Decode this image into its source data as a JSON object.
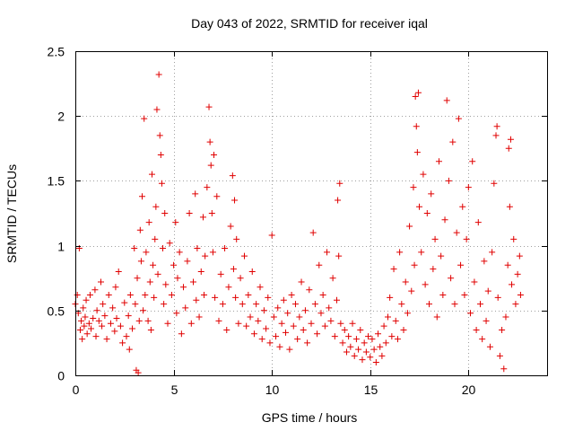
{
  "chart_data": {
    "type": "scatter",
    "title": "Day 043 of 2022, SRMTID for receiver iqal",
    "xlabel": "GPS time / hours",
    "ylabel": "SRMTID / TECUs",
    "xlim": [
      0,
      24
    ],
    "ylim": [
      0,
      2.5
    ],
    "xticks": [
      0,
      5,
      10,
      15,
      20
    ],
    "xtick_labels": [
      "0",
      "5",
      "10",
      "15",
      "20"
    ],
    "yticks": [
      0,
      0.5,
      1,
      1.5,
      2,
      2.5
    ],
    "ytick_labels": [
      "0",
      "0.5",
      "1",
      "1.5",
      "2",
      "2.5"
    ],
    "grid": true,
    "marker": "+",
    "color": "#e00000",
    "series": [
      {
        "name": "SRMTID",
        "points": [
          [
            0.0,
            0.55
          ],
          [
            0.1,
            0.62
          ],
          [
            0.15,
            0.48
          ],
          [
            0.2,
            0.98
          ],
          [
            0.25,
            0.35
          ],
          [
            0.3,
            0.42
          ],
          [
            0.35,
            0.28
          ],
          [
            0.4,
            0.52
          ],
          [
            0.45,
            0.38
          ],
          [
            0.5,
            0.45
          ],
          [
            0.55,
            0.58
          ],
          [
            0.6,
            0.32
          ],
          [
            0.7,
            0.4
          ],
          [
            0.75,
            0.62
          ],
          [
            0.8,
            0.36
          ],
          [
            0.9,
            0.44
          ],
          [
            1.0,
            0.66
          ],
          [
            1.05,
            0.3
          ],
          [
            1.1,
            0.5
          ],
          [
            1.2,
            0.42
          ],
          [
            1.3,
            0.72
          ],
          [
            1.35,
            0.38
          ],
          [
            1.4,
            0.55
          ],
          [
            1.5,
            0.46
          ],
          [
            1.6,
            0.28
          ],
          [
            1.7,
            0.62
          ],
          [
            1.8,
            0.4
          ],
          [
            1.9,
            0.52
          ],
          [
            2.0,
            0.34
          ],
          [
            2.05,
            0.68
          ],
          [
            2.1,
            0.44
          ],
          [
            2.2,
            0.8
          ],
          [
            2.3,
            0.38
          ],
          [
            2.4,
            0.25
          ],
          [
            2.5,
            0.56
          ],
          [
            2.6,
            0.3
          ],
          [
            2.7,
            0.46
          ],
          [
            2.75,
            0.2
          ],
          [
            2.8,
            0.62
          ],
          [
            2.9,
            0.36
          ],
          [
            3.0,
            0.98
          ],
          [
            3.05,
            0.55
          ],
          [
            3.1,
            0.04
          ],
          [
            3.15,
            0.75
          ],
          [
            3.2,
            0.02
          ],
          [
            3.25,
            0.42
          ],
          [
            3.3,
            1.12
          ],
          [
            3.35,
            0.88
          ],
          [
            3.4,
            1.38
          ],
          [
            3.45,
            0.5
          ],
          [
            3.5,
            1.98
          ],
          [
            3.55,
            0.62
          ],
          [
            3.6,
            0.95
          ],
          [
            3.7,
            0.42
          ],
          [
            3.75,
            1.18
          ],
          [
            3.8,
            0.72
          ],
          [
            3.85,
            0.35
          ],
          [
            3.9,
            1.55
          ],
          [
            3.95,
            0.85
          ],
          [
            4.0,
            0.6
          ],
          [
            4.05,
            1.05
          ],
          [
            4.1,
            1.3
          ],
          [
            4.15,
            2.05
          ],
          [
            4.2,
            0.78
          ],
          [
            4.25,
            2.32
          ],
          [
            4.3,
            1.85
          ],
          [
            4.35,
            1.7
          ],
          [
            4.4,
            1.48
          ],
          [
            4.45,
            0.98
          ],
          [
            4.5,
            0.55
          ],
          [
            4.55,
            1.25
          ],
          [
            4.6,
            0.7
          ],
          [
            4.7,
            0.4
          ],
          [
            4.8,
            1.02
          ],
          [
            4.9,
            0.62
          ],
          [
            5.0,
            0.85
          ],
          [
            5.1,
            1.18
          ],
          [
            5.15,
            0.48
          ],
          [
            5.2,
            0.75
          ],
          [
            5.3,
            0.95
          ],
          [
            5.4,
            0.32
          ],
          [
            5.5,
            0.68
          ],
          [
            5.6,
            0.52
          ],
          [
            5.7,
            0.88
          ],
          [
            5.8,
            1.25
          ],
          [
            5.9,
            0.4
          ],
          [
            6.0,
            0.72
          ],
          [
            6.1,
            1.4
          ],
          [
            6.15,
            0.58
          ],
          [
            6.2,
            0.98
          ],
          [
            6.3,
            0.45
          ],
          [
            6.4,
            0.8
          ],
          [
            6.5,
            1.22
          ],
          [
            6.55,
            0.62
          ],
          [
            6.6,
            0.92
          ],
          [
            6.7,
            1.45
          ],
          [
            6.8,
            2.07
          ],
          [
            6.85,
            1.8
          ],
          [
            6.9,
            1.62
          ],
          [
            6.95,
            1.25
          ],
          [
            7.0,
            0.95
          ],
          [
            7.05,
            1.7
          ],
          [
            7.1,
            0.6
          ],
          [
            7.2,
            1.38
          ],
          [
            7.3,
            0.42
          ],
          [
            7.4,
            0.78
          ],
          [
            7.5,
            0.55
          ],
          [
            7.6,
            0.98
          ],
          [
            7.7,
            0.35
          ],
          [
            7.8,
            0.68
          ],
          [
            7.9,
            1.15
          ],
          [
            8.0,
            1.54
          ],
          [
            8.05,
            0.82
          ],
          [
            8.1,
            1.35
          ],
          [
            8.15,
            0.6
          ],
          [
            8.2,
            1.05
          ],
          [
            8.3,
            0.4
          ],
          [
            8.4,
            0.75
          ],
          [
            8.5,
            0.55
          ],
          [
            8.6,
            0.92
          ],
          [
            8.7,
            0.38
          ],
          [
            8.8,
            0.62
          ],
          [
            8.9,
            0.45
          ],
          [
            9.0,
            0.8
          ],
          [
            9.1,
            0.32
          ],
          [
            9.2,
            0.55
          ],
          [
            9.3,
            0.42
          ],
          [
            9.4,
            0.68
          ],
          [
            9.5,
            0.28
          ],
          [
            9.6,
            0.5
          ],
          [
            9.7,
            0.36
          ],
          [
            9.8,
            0.6
          ],
          [
            9.9,
            0.25
          ],
          [
            10.0,
            1.08
          ],
          [
            10.1,
            0.45
          ],
          [
            10.2,
            0.3
          ],
          [
            10.3,
            0.52
          ],
          [
            10.4,
            0.22
          ],
          [
            10.5,
            0.4
          ],
          [
            10.6,
            0.58
          ],
          [
            10.7,
            0.33
          ],
          [
            10.8,
            0.48
          ],
          [
            10.9,
            0.2
          ],
          [
            11.0,
            0.62
          ],
          [
            11.1,
            0.38
          ],
          [
            11.2,
            0.55
          ],
          [
            11.3,
            0.28
          ],
          [
            11.4,
            0.45
          ],
          [
            11.5,
            0.72
          ],
          [
            11.6,
            0.35
          ],
          [
            11.7,
            0.5
          ],
          [
            11.8,
            0.25
          ],
          [
            11.9,
            0.66
          ],
          [
            12.0,
            0.4
          ],
          [
            12.1,
            1.1
          ],
          [
            12.2,
            0.55
          ],
          [
            12.3,
            0.32
          ],
          [
            12.4,
            0.85
          ],
          [
            12.5,
            0.48
          ],
          [
            12.6,
            0.62
          ],
          [
            12.7,
            0.38
          ],
          [
            12.8,
            0.95
          ],
          [
            12.9,
            0.52
          ],
          [
            13.0,
            0.42
          ],
          [
            13.1,
            0.75
          ],
          [
            13.2,
            0.3
          ],
          [
            13.3,
            0.58
          ],
          [
            13.35,
            1.35
          ],
          [
            13.4,
            0.92
          ],
          [
            13.45,
            1.48
          ],
          [
            13.5,
            0.4
          ],
          [
            13.6,
            0.25
          ],
          [
            13.7,
            0.35
          ],
          [
            13.8,
            0.18
          ],
          [
            13.9,
            0.3
          ],
          [
            14.0,
            0.22
          ],
          [
            14.1,
            0.4
          ],
          [
            14.2,
            0.15
          ],
          [
            14.3,
            0.28
          ],
          [
            14.4,
            0.2
          ],
          [
            14.5,
            0.35
          ],
          [
            14.6,
            0.12
          ],
          [
            14.7,
            0.25
          ],
          [
            14.8,
            0.18
          ],
          [
            14.9,
            0.3
          ],
          [
            15.0,
            0.14
          ],
          [
            15.1,
            0.28
          ],
          [
            15.2,
            0.2
          ],
          [
            15.3,
            0.1
          ],
          [
            15.4,
            0.32
          ],
          [
            15.5,
            0.22
          ],
          [
            15.6,
            0.15
          ],
          [
            15.7,
            0.38
          ],
          [
            15.8,
            0.25
          ],
          [
            15.9,
            0.45
          ],
          [
            16.0,
            0.6
          ],
          [
            16.1,
            0.3
          ],
          [
            16.2,
            0.82
          ],
          [
            16.3,
            0.42
          ],
          [
            16.4,
            0.28
          ],
          [
            16.5,
            0.95
          ],
          [
            16.6,
            0.55
          ],
          [
            16.7,
            0.35
          ],
          [
            16.8,
            0.72
          ],
          [
            16.9,
            0.48
          ],
          [
            17.0,
            1.15
          ],
          [
            17.1,
            0.65
          ],
          [
            17.2,
            1.45
          ],
          [
            17.25,
            0.85
          ],
          [
            17.3,
            2.15
          ],
          [
            17.35,
            1.92
          ],
          [
            17.4,
            1.72
          ],
          [
            17.45,
            2.18
          ],
          [
            17.5,
            1.3
          ],
          [
            17.6,
            0.95
          ],
          [
            17.7,
            1.55
          ],
          [
            17.8,
            0.7
          ],
          [
            17.9,
            1.25
          ],
          [
            18.0,
            0.55
          ],
          [
            18.1,
            1.4
          ],
          [
            18.2,
            0.82
          ],
          [
            18.3,
            1.05
          ],
          [
            18.4,
            0.45
          ],
          [
            18.5,
            1.65
          ],
          [
            18.6,
            0.92
          ],
          [
            18.7,
            0.62
          ],
          [
            18.8,
            1.2
          ],
          [
            18.9,
            2.12
          ],
          [
            19.0,
            1.5
          ],
          [
            19.1,
            0.75
          ],
          [
            19.2,
            1.8
          ],
          [
            19.3,
            0.55
          ],
          [
            19.4,
            1.1
          ],
          [
            19.5,
            1.98
          ],
          [
            19.6,
            0.85
          ],
          [
            19.7,
            1.3
          ],
          [
            19.8,
            0.62
          ],
          [
            19.9,
            1.05
          ],
          [
            20.0,
            1.45
          ],
          [
            20.1,
            0.48
          ],
          [
            20.2,
            1.65
          ],
          [
            20.3,
            0.72
          ],
          [
            20.4,
            0.35
          ],
          [
            20.5,
            1.18
          ],
          [
            20.6,
            0.55
          ],
          [
            20.7,
            0.28
          ],
          [
            20.8,
            0.88
          ],
          [
            20.9,
            0.42
          ],
          [
            21.0,
            0.65
          ],
          [
            21.1,
            0.22
          ],
          [
            21.2,
            0.95
          ],
          [
            21.3,
            1.48
          ],
          [
            21.4,
            1.85
          ],
          [
            21.45,
            1.92
          ],
          [
            21.5,
            0.6
          ],
          [
            21.6,
            0.15
          ],
          [
            21.7,
            0.35
          ],
          [
            21.8,
            0.05
          ],
          [
            21.9,
            0.45
          ],
          [
            22.0,
            0.85
          ],
          [
            22.05,
            1.75
          ],
          [
            22.1,
            1.3
          ],
          [
            22.15,
            1.82
          ],
          [
            22.2,
            0.7
          ],
          [
            22.3,
            1.05
          ],
          [
            22.4,
            0.55
          ],
          [
            22.5,
            0.78
          ],
          [
            22.6,
            0.92
          ],
          [
            22.65,
            0.62
          ]
        ]
      }
    ]
  }
}
